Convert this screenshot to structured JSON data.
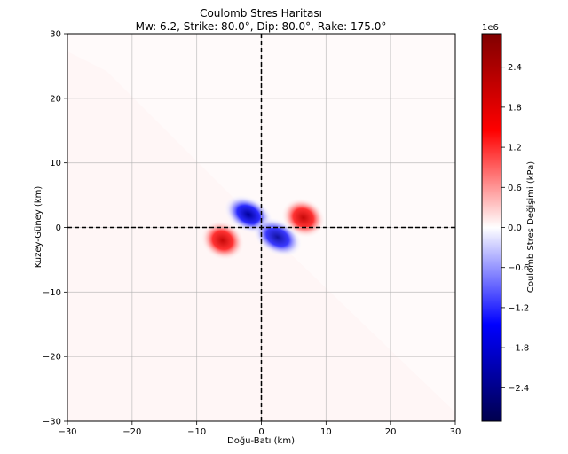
{
  "chart_data": {
    "type": "heatmap",
    "title": "Coulomb Stres Haritası",
    "subtitle": "Mw: 6.2, Strike: 80.0°, Dip: 80.0°, Rake: 175.0°",
    "xlabel": "Doğu-Batı (km)",
    "ylabel": "Kuzey-Güney (km)",
    "xlim": [
      -30,
      30
    ],
    "ylim": [
      -30,
      30
    ],
    "x_ticks": [
      "−30",
      "−20",
      "−10",
      "0",
      "10",
      "20",
      "30"
    ],
    "y_ticks": [
      "30",
      "20",
      "10",
      "0",
      "−10",
      "−20",
      "−30"
    ],
    "grid": true,
    "reference_lines": {
      "x": 0,
      "y": 0,
      "style": "dashed",
      "color": "#000000"
    },
    "colormap": "seismic",
    "colorbar": {
      "label": "Coulomb Stres Değişimi (kPa)",
      "offset_text": "1e6",
      "range": [
        -2.9,
        2.9
      ],
      "ticks": [
        "2.4",
        "1.8",
        "1.2",
        "0.6",
        "0.0",
        "−0.6",
        "−1.2",
        "−1.8",
        "−2.4"
      ]
    },
    "lobes": [
      {
        "name": "positive-west",
        "x": -6,
        "y": -2,
        "value": 2.8
      },
      {
        "name": "negative-center-west",
        "x": -2,
        "y": 2,
        "value": -2.9
      },
      {
        "name": "negative-center-east",
        "x": 2.5,
        "y": -1.5,
        "value": -2.7
      },
      {
        "name": "positive-east",
        "x": 6.5,
        "y": 1.5,
        "value": 2.8
      }
    ],
    "background_value": 0.05
  }
}
